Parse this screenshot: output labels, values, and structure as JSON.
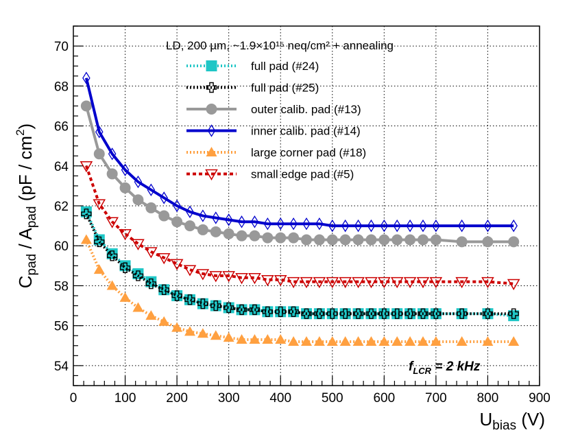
{
  "chart_data": {
    "type": "line",
    "title": "LD, 200 µm, ~1.9×10¹⁵ neq/cm² + annealing",
    "xlabel": "U",
    "xlabel_sub": "bias",
    "xlabel_unit": " (V)",
    "ylabel_c": "C",
    "ylabel_pad1": "pad",
    "ylabel_a": " / A",
    "ylabel_pad2": "pad",
    "ylabel_unit": "  (pF / cm",
    "ylabel_sup": "2",
    "ylabel_close": ")",
    "xlim": [
      0,
      900
    ],
    "ylim": [
      53,
      71
    ],
    "xticks": [
      0,
      100,
      200,
      300,
      400,
      500,
      600,
      700,
      800,
      900
    ],
    "yticks": [
      54,
      56,
      58,
      60,
      62,
      64,
      66,
      68,
      70
    ],
    "grid": true,
    "legend_position": "top",
    "annotation": "f",
    "annotation_sub": "LCR",
    "annotation_rest": " = 2 kHz",
    "x": [
      25,
      50,
      75,
      100,
      125,
      150,
      175,
      200,
      225,
      250,
      275,
      300,
      325,
      350,
      375,
      400,
      425,
      450,
      475,
      500,
      525,
      550,
      575,
      600,
      625,
      650,
      675,
      700,
      750,
      800,
      850
    ],
    "series": [
      {
        "name": "full pad (#24)",
        "color": "#1fc6c6",
        "line_style": "dotted",
        "marker": "square-filled",
        "values": [
          61.7,
          60.3,
          59.6,
          59.0,
          58.6,
          58.2,
          57.8,
          57.5,
          57.3,
          57.1,
          57.0,
          56.9,
          56.8,
          56.8,
          56.7,
          56.7,
          56.7,
          56.6,
          56.6,
          56.6,
          56.6,
          56.6,
          56.6,
          56.6,
          56.6,
          56.6,
          56.6,
          56.6,
          56.6,
          56.6,
          56.5
        ]
      },
      {
        "name": "full pad (#25)",
        "color": "#000000",
        "line_style": "dotted",
        "marker": "cross-open",
        "values": [
          61.6,
          60.2,
          59.5,
          58.9,
          58.5,
          58.1,
          57.8,
          57.5,
          57.3,
          57.1,
          57.0,
          56.9,
          56.8,
          56.8,
          56.7,
          56.7,
          56.7,
          56.6,
          56.6,
          56.6,
          56.6,
          56.6,
          56.6,
          56.6,
          56.6,
          56.6,
          56.6,
          56.6,
          56.6,
          56.6,
          56.6
        ]
      },
      {
        "name": "outer calib. pad (#13)",
        "color": "#999999",
        "line_style": "solid",
        "marker": "circle-filled",
        "values": [
          67.0,
          64.6,
          63.6,
          62.9,
          62.3,
          61.9,
          61.5,
          61.2,
          61.0,
          60.8,
          60.7,
          60.6,
          60.5,
          60.5,
          60.4,
          60.4,
          60.4,
          60.3,
          60.3,
          60.3,
          60.3,
          60.3,
          60.3,
          60.3,
          60.3,
          60.3,
          60.3,
          60.3,
          60.2,
          60.2,
          60.2
        ]
      },
      {
        "name": "inner calib. pad (#14)",
        "color": "#0000cc",
        "line_style": "solid",
        "marker": "diamond-open",
        "values": [
          68.4,
          65.7,
          64.6,
          63.8,
          63.2,
          62.8,
          62.4,
          62.0,
          61.7,
          61.5,
          61.4,
          61.3,
          61.2,
          61.2,
          61.1,
          61.1,
          61.1,
          61.1,
          61.1,
          61.0,
          61.0,
          61.0,
          61.0,
          61.0,
          61.0,
          61.0,
          61.0,
          61.0,
          61.0,
          61.0,
          61.0
        ]
      },
      {
        "name": "large corner pad (#18)",
        "color": "#ffa040",
        "line_style": "dotted",
        "marker": "triangle-filled",
        "values": [
          60.3,
          58.8,
          58.0,
          57.4,
          56.9,
          56.5,
          56.2,
          55.9,
          55.7,
          55.6,
          55.5,
          55.4,
          55.3,
          55.3,
          55.3,
          55.3,
          55.2,
          55.2,
          55.2,
          55.2,
          55.2,
          55.2,
          55.2,
          55.2,
          55.2,
          55.2,
          55.2,
          55.2,
          55.2,
          55.2,
          55.2
        ]
      },
      {
        "name": "small edge pad (#5)",
        "color": "#cc0000",
        "line_style": "dashed",
        "marker": "triangle-down-open",
        "values": [
          64.0,
          62.1,
          61.2,
          60.6,
          60.1,
          59.7,
          59.4,
          59.1,
          58.8,
          58.6,
          58.5,
          58.5,
          58.4,
          58.4,
          58.3,
          58.3,
          58.2,
          58.2,
          58.2,
          58.2,
          58.2,
          58.2,
          58.2,
          58.2,
          58.2,
          58.2,
          58.2,
          58.2,
          58.2,
          58.2,
          58.1
        ]
      }
    ]
  }
}
